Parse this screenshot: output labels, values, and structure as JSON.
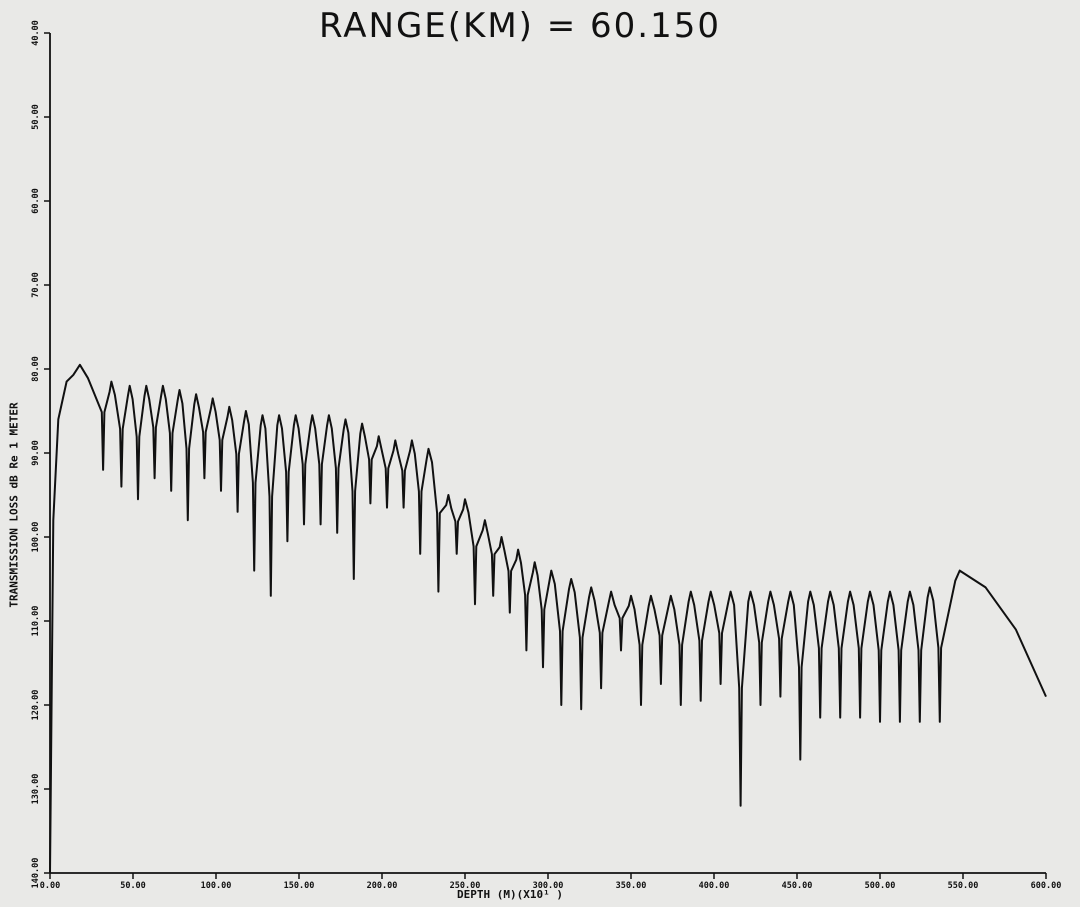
{
  "chart_data": {
    "type": "line",
    "title": "RANGE(KM) = 60.150",
    "xlabel": "DEPTH (M)(X10¹ )",
    "ylabel": "TRANSMISSION LOSS dB Re 1 METER",
    "xlim": [
      0,
      600
    ],
    "ylim": [
      40,
      140
    ],
    "y_inverted": true,
    "grid": false,
    "x_ticks": [
      "0.00",
      "50.00",
      "100.00",
      "150.00",
      "200.00",
      "250.00",
      "300.00",
      "350.00",
      "400.00",
      "450.00",
      "500.00",
      "550.00",
      "600.00"
    ],
    "x_tick_values": [
      0,
      50,
      100,
      150,
      200,
      250,
      300,
      350,
      400,
      450,
      500,
      550,
      600
    ],
    "y_ticks": [
      "40.00",
      "50.00",
      "60.00",
      "70.00",
      "80.00",
      "90.00",
      "100.00",
      "110.00",
      "120.00",
      "130.00",
      "140.00"
    ],
    "y_tick_values": [
      40,
      50,
      60,
      70,
      80,
      90,
      100,
      110,
      120,
      130,
      140
    ],
    "series": [
      {
        "color": "#111111",
        "peaks": [
          [
            18,
            79.5
          ],
          [
            37,
            81.5
          ],
          [
            48,
            82.0
          ],
          [
            58,
            82.0
          ],
          [
            68,
            82.0
          ],
          [
            78,
            82.5
          ],
          [
            88,
            83.0
          ],
          [
            98,
            83.5
          ],
          [
            108,
            84.5
          ],
          [
            118,
            85.0
          ],
          [
            128,
            85.5
          ],
          [
            138,
            85.5
          ],
          [
            148,
            85.5
          ],
          [
            158,
            85.5
          ],
          [
            168,
            85.5
          ],
          [
            178,
            86.0
          ],
          [
            188,
            86.5
          ],
          [
            198,
            88.0
          ],
          [
            208,
            88.5
          ],
          [
            218,
            88.5
          ],
          [
            228,
            89.5
          ],
          [
            240,
            95.0
          ],
          [
            250,
            95.5
          ],
          [
            262,
            98.0
          ],
          [
            272,
            100.0
          ],
          [
            282,
            101.5
          ],
          [
            292,
            103.0
          ],
          [
            302,
            104.0
          ],
          [
            314,
            105.0
          ],
          [
            326,
            106.0
          ],
          [
            338,
            106.5
          ],
          [
            350,
            107.0
          ],
          [
            362,
            107.0
          ],
          [
            374,
            107.0
          ],
          [
            386,
            106.5
          ],
          [
            398,
            106.5
          ],
          [
            410,
            106.5
          ],
          [
            422,
            106.5
          ],
          [
            434,
            106.5
          ],
          [
            446,
            106.5
          ],
          [
            458,
            106.5
          ],
          [
            470,
            106.5
          ],
          [
            482,
            106.5
          ],
          [
            494,
            106.5
          ],
          [
            506,
            106.5
          ],
          [
            518,
            106.5
          ],
          [
            530,
            106.0
          ],
          [
            548,
            104.0
          ]
        ],
        "nulls": [
          [
            32,
            92.0
          ],
          [
            43,
            94.0
          ],
          [
            53,
            95.5
          ],
          [
            63,
            93.0
          ],
          [
            73,
            94.5
          ],
          [
            83,
            98.0
          ],
          [
            93,
            93.0
          ],
          [
            103,
            94.5
          ],
          [
            113,
            97.0
          ],
          [
            123,
            104.0
          ],
          [
            133,
            107.0
          ],
          [
            143,
            100.5
          ],
          [
            153,
            98.5
          ],
          [
            163,
            98.5
          ],
          [
            173,
            99.5
          ],
          [
            183,
            105.0
          ],
          [
            193,
            96.0
          ],
          [
            203,
            96.5
          ],
          [
            213,
            96.5
          ],
          [
            223,
            102.0
          ],
          [
            234,
            106.5
          ],
          [
            245,
            102.0
          ],
          [
            256,
            108.0
          ],
          [
            267,
            107.0
          ],
          [
            277,
            109.0
          ],
          [
            287,
            113.5
          ],
          [
            297,
            115.5
          ],
          [
            308,
            120.0
          ],
          [
            320,
            120.5
          ],
          [
            332,
            118.0
          ],
          [
            344,
            113.5
          ],
          [
            356,
            120.0
          ],
          [
            368,
            117.5
          ],
          [
            380,
            120.0
          ],
          [
            392,
            119.5
          ],
          [
            404,
            117.5
          ],
          [
            416,
            132.0
          ],
          [
            428,
            120.0
          ],
          [
            440,
            119.0
          ],
          [
            452,
            126.5
          ],
          [
            464,
            121.5
          ],
          [
            476,
            121.5
          ],
          [
            488,
            121.5
          ],
          [
            500,
            122.0
          ],
          [
            512,
            122.0
          ],
          [
            524,
            122.0
          ],
          [
            536,
            122.0
          ]
        ],
        "start": [
          0,
          140.0
        ],
        "end": [
          600,
          119.0
        ]
      }
    ]
  }
}
